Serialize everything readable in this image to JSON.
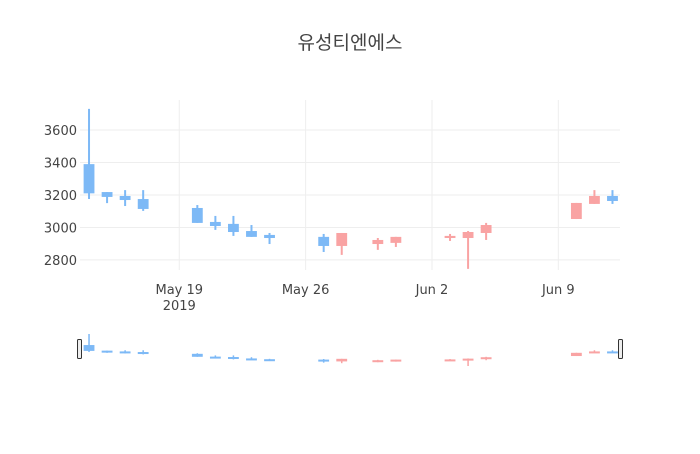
{
  "chart_data": {
    "type": "candlestick",
    "title": "유성티엔에스",
    "xlabel": "",
    "ylabel": "",
    "ylim": [
      2738,
      3785
    ],
    "xlim": [
      "2019-05-13T12:00",
      "2019-06-12T10:00"
    ],
    "grid": true,
    "range_slider": true,
    "y_ticks": [
      2800,
      3000,
      3200,
      3400,
      3600
    ],
    "x_ticks": [
      {
        "date": "2019-05-19",
        "label": "May 19",
        "sublabel": "2019"
      },
      {
        "date": "2019-05-26",
        "label": "May 26",
        "sublabel": ""
      },
      {
        "date": "2019-06-02",
        "label": "Jun 2",
        "sublabel": ""
      },
      {
        "date": "2019-06-09",
        "label": "Jun 9",
        "sublabel": ""
      }
    ],
    "colors": {
      "increasing": "#f9a3a3",
      "decreasing": "#7db9f6"
    },
    "series": [
      {
        "date": "2019-05-14",
        "open": 3390,
        "high": 3730,
        "low": 3175,
        "close": 3210
      },
      {
        "date": "2019-05-15",
        "open": 3218,
        "high": 3218,
        "low": 3150,
        "close": 3188
      },
      {
        "date": "2019-05-16",
        "open": 3194,
        "high": 3230,
        "low": 3132,
        "close": 3169
      },
      {
        "date": "2019-05-17",
        "open": 3175,
        "high": 3230,
        "low": 3102,
        "close": 3114
      },
      {
        "date": "2019-05-20",
        "open": 3120,
        "high": 3138,
        "low": 3028,
        "close": 3028
      },
      {
        "date": "2019-05-21",
        "open": 3034,
        "high": 3071,
        "low": 2985,
        "close": 3009
      },
      {
        "date": "2019-05-22",
        "open": 3022,
        "high": 3071,
        "low": 2948,
        "close": 2972
      },
      {
        "date": "2019-05-23",
        "open": 2978,
        "high": 3015,
        "low": 2942,
        "close": 2942
      },
      {
        "date": "2019-05-24",
        "open": 2954,
        "high": 2966,
        "low": 2898,
        "close": 2935
      },
      {
        "date": "2019-05-27",
        "open": 2942,
        "high": 2960,
        "low": 2849,
        "close": 2886
      },
      {
        "date": "2019-05-28",
        "open": 2886,
        "high": 2966,
        "low": 2831,
        "close": 2966
      },
      {
        "date": "2019-05-30",
        "open": 2898,
        "high": 2935,
        "low": 2862,
        "close": 2923
      },
      {
        "date": "2019-05-31",
        "open": 2905,
        "high": 2942,
        "low": 2880,
        "close": 2942
      },
      {
        "date": "2019-06-03",
        "open": 2935,
        "high": 2960,
        "low": 2917,
        "close": 2948
      },
      {
        "date": "2019-06-04",
        "open": 2935,
        "high": 2978,
        "low": 2745,
        "close": 2972
      },
      {
        "date": "2019-06-05",
        "open": 2966,
        "high": 3028,
        "low": 2923,
        "close": 3015
      },
      {
        "date": "2019-06-10",
        "open": 3052,
        "high": 3151,
        "low": 3052,
        "close": 3151
      },
      {
        "date": "2019-06-11",
        "open": 3145,
        "high": 3230,
        "low": 3145,
        "close": 3194
      },
      {
        "date": "2019-06-12",
        "open": 3194,
        "high": 3230,
        "low": 3145,
        "close": 3163
      }
    ]
  }
}
